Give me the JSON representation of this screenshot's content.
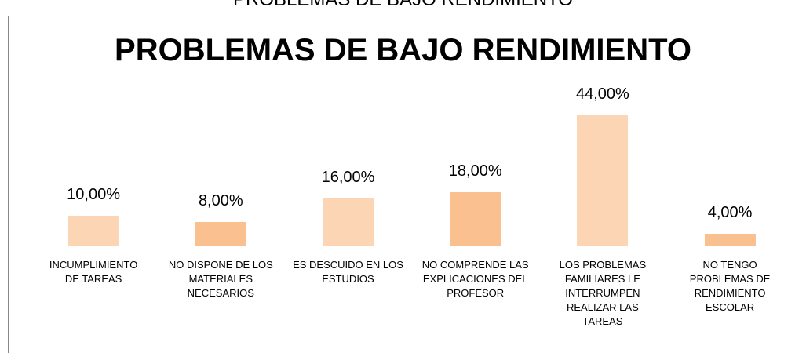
{
  "heading": "PROBLEMAS DE BAJO RENDIMIENTO",
  "chart_data": {
    "type": "bar",
    "title": "PROBLEMAS DE BAJO RENDIMIENTO",
    "categories": [
      "INCUMPLIMIENTO\nDE TAREAS",
      "NO DISPONE DE LOS\nMATERIALES\nNECESARIOS",
      "ES DESCUIDO EN LOS\nESTUDIOS",
      "NO COMPRENDE LAS\nEXPLICACIONES DEL\nPROFESOR",
      "LOS PROBLEMAS\nFAMILIARES LE\nINTERRUMPEN\nREALIZAR LAS\nTAREAS",
      "NO TENGO\nPROBLEMAS DE\nRENDIMIENTO\nESCOLAR"
    ],
    "values": [
      10,
      8,
      16,
      18,
      44,
      4
    ],
    "value_labels": [
      "10,00%",
      "8,00%",
      "16,00%",
      "18,00%",
      "44,00%",
      "4,00%"
    ],
    "colors": [
      "#fcd5b4",
      "#fac090",
      "#fcd5b4",
      "#fac090",
      "#fcd5b4",
      "#fac090"
    ]
  }
}
